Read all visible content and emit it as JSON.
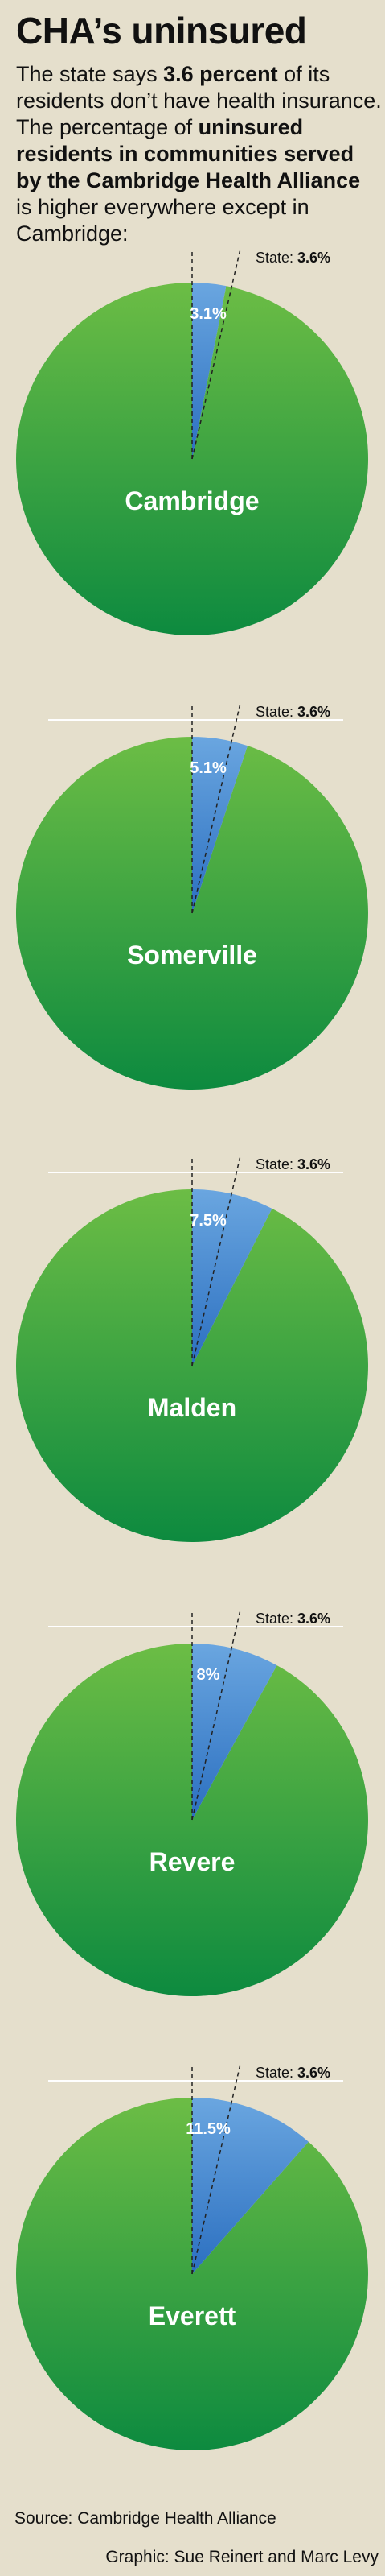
{
  "header": {
    "title": "CHA’s uninsured",
    "intro": [
      {
        "text": "The state says ",
        "bold": false
      },
      {
        "text": "3.6 percent",
        "bold": true
      },
      {
        "text": " of its residents don’t have health insurance. The percentage of ",
        "bold": false
      },
      {
        "text": "uninsured residents in communities served by the Cambridge Health Alliance",
        "bold": true
      },
      {
        "text": " is higher everywhere except in Cambridge:",
        "bold": false
      }
    ]
  },
  "state_label": "State:",
  "state_value_label": "3.6%",
  "state_value": 3.6,
  "colors": {
    "background": "#e5dfcc",
    "pie_green_light": "#6cbd45",
    "pie_green_dark": "#0d8a3f",
    "uninsured_blue_light": "#6aa6e0",
    "uninsured_blue_dark": "#2b6fc0",
    "divider": "#ffffff"
  },
  "chart_data": [
    {
      "type": "pie",
      "title": "Cambridge",
      "slices": [
        {
          "label": "3.1%",
          "value": 3.1
        },
        {
          "label": "",
          "value": 96.9
        }
      ],
      "reference": {
        "label": "State: 3.6%",
        "value": 3.6
      }
    },
    {
      "type": "pie",
      "title": "Somerville",
      "slices": [
        {
          "label": "5.1%",
          "value": 5.1
        },
        {
          "label": "",
          "value": 94.9
        }
      ],
      "reference": {
        "label": "State: 3.6%",
        "value": 3.6
      }
    },
    {
      "type": "pie",
      "title": "Malden",
      "slices": [
        {
          "label": "7.5%",
          "value": 7.5
        },
        {
          "label": "",
          "value": 92.5
        }
      ],
      "reference": {
        "label": "State: 3.6%",
        "value": 3.6
      }
    },
    {
      "type": "pie",
      "title": "Revere",
      "slices": [
        {
          "label": "8%",
          "value": 8
        },
        {
          "label": "",
          "value": 92
        }
      ],
      "reference": {
        "label": "State: 3.6%",
        "value": 3.6
      }
    },
    {
      "type": "pie",
      "title": "Everett",
      "slices": [
        {
          "label": "11.5%",
          "value": 11.5
        },
        {
          "label": "",
          "value": 88.5
        }
      ],
      "reference": {
        "label": "State: 3.6%",
        "value": 3.6
      }
    }
  ],
  "footer": {
    "source": "Source: Cambridge Health Alliance",
    "credit": "Graphic: Sue Reinert and Marc Levy"
  }
}
